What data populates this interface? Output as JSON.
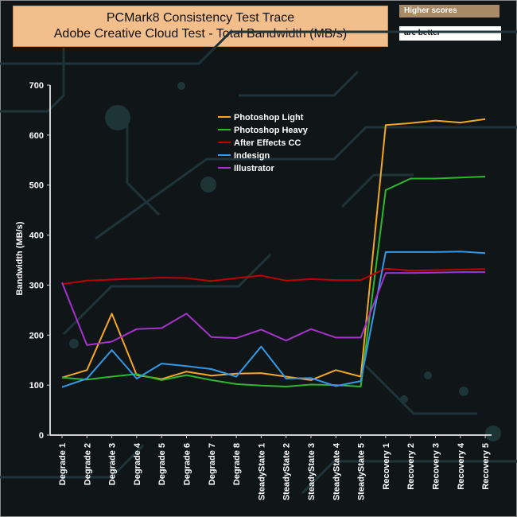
{
  "header": {
    "title_line1": "PCMark8 Consistency Test Trace",
    "title_line2": "Adobe Creative Cloud Test - Total Bandwidth (MB/s)",
    "note_line1": "Higher scores",
    "note_line2": "are better"
  },
  "chart_data": {
    "type": "line",
    "title": "PCMark8 Consistency Test Trace — Adobe Creative Cloud Test - Total Bandwidth (MB/s)",
    "xlabel": "",
    "ylabel": "Bandwidth (MB/s)",
    "ylim": [
      0,
      700
    ],
    "yticks": [
      0,
      100,
      200,
      300,
      400,
      500,
      600,
      700
    ],
    "grid": false,
    "legend_position": "top-center",
    "categories": [
      "Degrade 1",
      "Degrade 2",
      "Degrade 3",
      "Degrade 4",
      "Degrade 5",
      "Degrade 6",
      "Degrade 7",
      "Degrade 8",
      "SteadyState 1",
      "SteadyState 2",
      "SteadyState 3",
      "SteadyState 4",
      "SteadyState 5",
      "Recovery 1",
      "Recovery 2",
      "Recovery 3",
      "Recovery 4",
      "Recovery 5"
    ],
    "series": [
      {
        "name": "Photoshop Light",
        "color": "#f5a623",
        "values": [
          115,
          130,
          243,
          120,
          112,
          127,
          119,
          123,
          124,
          117,
          110,
          130,
          117,
          620,
          624,
          629,
          625,
          632
        ]
      },
      {
        "name": " Photoshop Heavy",
        "color": "#2eb82e",
        "values": [
          115,
          111,
          117,
          122,
          110,
          120,
          110,
          102,
          99,
          97,
          101,
          100,
          97,
          490,
          513,
          513,
          515,
          517
        ]
      },
      {
        "name": "After Effects CC",
        "color": "#c00000",
        "values": [
          302,
          309,
          311,
          313,
          315,
          314,
          308,
          314,
          319,
          309,
          312,
          310,
          310,
          333,
          329,
          330,
          331,
          332
        ]
      },
      {
        "name": "Indesign",
        "color": "#3399e6",
        "values": [
          96,
          113,
          170,
          113,
          143,
          138,
          132,
          117,
          177,
          113,
          114,
          98,
          108,
          366,
          366,
          366,
          367,
          364
        ]
      },
      {
        "name": "Illustrator",
        "color": "#a633cc",
        "values": [
          305,
          180,
          187,
          212,
          214,
          243,
          196,
          194,
          211,
          189,
          212,
          195,
          195,
          324,
          324,
          325,
          326,
          326
        ]
      }
    ]
  }
}
